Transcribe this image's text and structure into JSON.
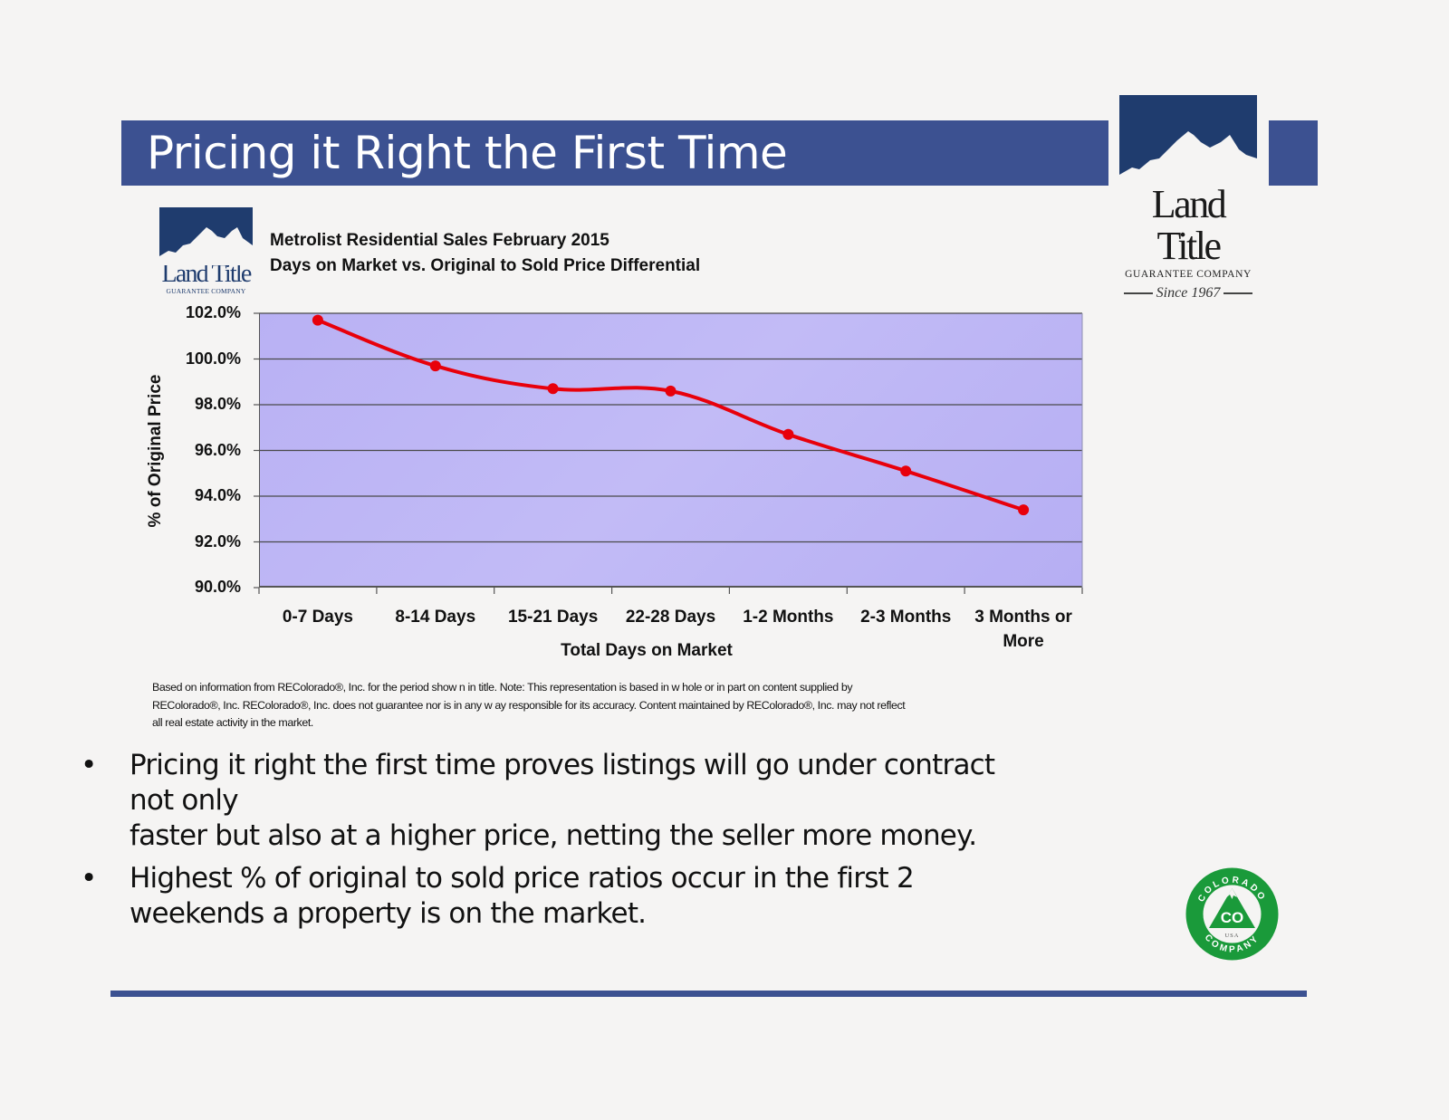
{
  "slide": {
    "title": "Pricing it Right the First Time",
    "accent_color": "#3c5191",
    "background_color": "#f5f4f3"
  },
  "logo_main": {
    "name": "Land Title",
    "subtitle": "GUARANTEE COMPANY",
    "since": "Since 1967",
    "color": "#1f3c6e"
  },
  "logo_chart": {
    "name": "Land Title",
    "subtitle": "GUARANTEE COMPANY"
  },
  "chart_data": {
    "type": "line",
    "title": "Metrolist Residential Sales February 2015",
    "subtitle": "Days on Market vs. Original to Sold Price Differential",
    "xlabel": "Total Days on Market",
    "ylabel": "% of Original Price",
    "categories": [
      "0-7 Days",
      "8-14 Days",
      "15-21 Days",
      "22-28 Days",
      "1-2 Months",
      "2-3 Months",
      "3 Months or More"
    ],
    "category_lines": [
      [
        "0-7 Days"
      ],
      [
        "8-14 Days"
      ],
      [
        "15-21 Days"
      ],
      [
        "22-28 Days"
      ],
      [
        "1-2 Months"
      ],
      [
        "2-3 Months"
      ],
      [
        "3 Months or",
        "More"
      ]
    ],
    "series": [
      {
        "name": "% of Original Price",
        "color": "#e8000b",
        "values": [
          101.7,
          99.7,
          98.7,
          98.6,
          96.7,
          95.1,
          93.4
        ]
      }
    ],
    "ylim": [
      90.0,
      102.0
    ],
    "yticks": [
      "102.0%",
      "100.0%",
      "98.0%",
      "96.0%",
      "94.0%",
      "92.0%",
      "90.0%"
    ],
    "ytick_values": [
      102,
      100,
      98,
      96,
      94,
      92,
      90
    ],
    "grid": true,
    "legend": "none",
    "plot_background": "#bdb5f5"
  },
  "source_note": [
    "Based on information from REColorado®, Inc. for the period show n in title. Note: This representation is based in w hole or in part on content supplied by",
    "REColorado®, Inc. REColorado®, Inc. does not guarantee nor is in any w ay responsible for its accuracy. Content maintained by REColorado®, Inc. may not reflect",
    "all real estate activity in the market."
  ],
  "bullets": [
    {
      "marker": "•",
      "lines": [
        "Pricing it right the first time proves listings will go under contract",
        "not only",
        "faster but also at a higher price, netting the seller more money."
      ]
    },
    {
      "marker": "•",
      "lines": [
        "Highest % of original to sold price ratios occur in the first 2",
        "weekends a property is on the market."
      ]
    }
  ],
  "badge": {
    "top_text": "COLORADO",
    "bottom_text": "COMPANY",
    "center": "CO",
    "country": "USA",
    "color": "#1a9a3a"
  }
}
